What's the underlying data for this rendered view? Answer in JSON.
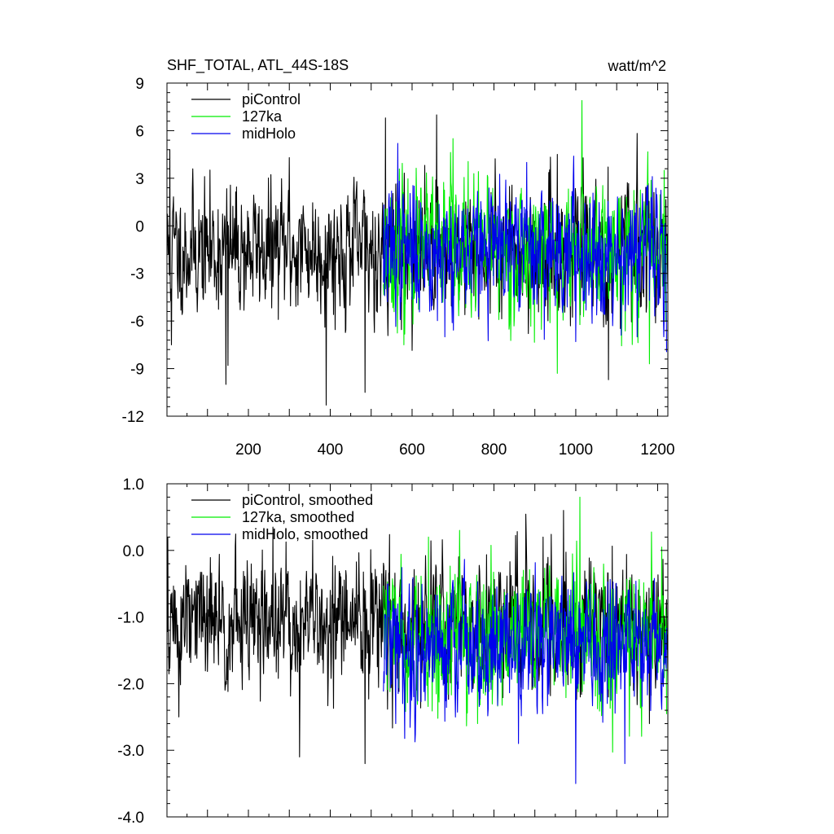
{
  "header": {
    "title": "SHF_TOTAL, ATL_44S-18S",
    "units": "watt/m^2"
  },
  "chart_data": [
    {
      "type": "line",
      "title": "SHF_TOTAL, ATL_44S-18S",
      "ylabel": "",
      "xlabel": "",
      "units_label": "watt/m^2",
      "xlim": [
        1,
        1225
      ],
      "ylim": [
        -12,
        9
      ],
      "xticks": [
        200,
        400,
        600,
        800,
        1000,
        1200
      ],
      "yticks": [
        -12,
        -9,
        -6,
        -3,
        0,
        3,
        6,
        9
      ],
      "ytick_labels": [
        "-12",
        "-9",
        "-6",
        "-3",
        "0",
        "3",
        "6",
        "9"
      ],
      "x_tick_labels_visible": true,
      "grid": false,
      "legend_position": "top-left",
      "series": [
        {
          "name": "piControl",
          "color": "#000000",
          "x_start": 1,
          "x_end": 1225,
          "mean": -1.5,
          "sd": 2.0,
          "seed": 11,
          "extremes": [
            [
              8,
              4.8
            ],
            [
              12,
              -7.5
            ],
            [
              145,
              -10.0
            ],
            [
              150,
              -8.8
            ],
            [
              300,
              4.3
            ],
            [
              390,
              -11.3
            ],
            [
              485,
              -10.5
            ],
            [
              535,
              6.8
            ],
            [
              660,
              7.0
            ],
            [
              955,
              4.5
            ],
            [
              1080,
              -9.7
            ]
          ]
        },
        {
          "name": "127ka",
          "color": "#00ee00",
          "x_start": 530,
          "x_end": 1222,
          "mean": -1.5,
          "sd": 2.1,
          "seed": 23,
          "extremes": [
            [
              580,
              -7.5
            ],
            [
              1015,
              7.9
            ],
            [
              955,
              -9.3
            ],
            [
              1180,
              -8.7
            ],
            [
              700,
              5.5
            ]
          ]
        },
        {
          "name": "midHolo",
          "color": "#0000ee",
          "x_start": 530,
          "x_end": 1222,
          "mean": -1.5,
          "sd": 2.0,
          "seed": 37,
          "extremes": [
            [
              565,
              5.2
            ],
            [
              680,
              -7.0
            ],
            [
              1000,
              -7.3
            ],
            [
              1150,
              -7.0
            ],
            [
              880,
              4.0
            ]
          ]
        }
      ]
    },
    {
      "type": "line",
      "title": "",
      "ylabel": "",
      "xlabel": "",
      "xlim": [
        1,
        1225
      ],
      "ylim": [
        -4,
        1
      ],
      "xticks": [
        200,
        400,
        600,
        800,
        1000,
        1200
      ],
      "yticks": [
        -4,
        -3,
        -2,
        -1,
        0,
        1
      ],
      "ytick_labels": [
        "-4.0",
        "-3.0",
        "-2.0",
        "-1.0",
        "0.0",
        "1.0"
      ],
      "x_tick_labels_visible": false,
      "grid": false,
      "legend_position": "top-left",
      "series": [
        {
          "name": "piControl, smoothed",
          "color": "#000000",
          "x_start": 1,
          "x_end": 1225,
          "mean": -1.1,
          "sd": 0.5,
          "seed": 51,
          "extremes": [
            [
              3,
              0.2
            ],
            [
              30,
              -2.5
            ],
            [
              260,
              0.35
            ],
            [
              325,
              -3.1
            ],
            [
              485,
              -3.2
            ],
            [
              920,
              0.2
            ],
            [
              970,
              0.6
            ],
            [
              1080,
              -2.2
            ],
            [
              1180,
              -2.6
            ]
          ]
        },
        {
          "name": "127ka, smoothed",
          "color": "#00ee00",
          "x_start": 530,
          "x_end": 1222,
          "mean": -1.3,
          "sd": 0.5,
          "seed": 63,
          "extremes": [
            [
              1010,
              0.8
            ],
            [
              760,
              -2.6
            ],
            [
              1210,
              0.05
            ],
            [
              640,
              0.2
            ]
          ]
        },
        {
          "name": "midHolo, smoothed",
          "color": "#0000ee",
          "x_start": 530,
          "x_end": 1222,
          "mean": -1.4,
          "sd": 0.5,
          "seed": 79,
          "extremes": [
            [
              1000,
              -3.5
            ],
            [
              1120,
              -3.2
            ],
            [
              860,
              -2.9
            ],
            [
              560,
              -2.6
            ]
          ]
        }
      ]
    }
  ]
}
